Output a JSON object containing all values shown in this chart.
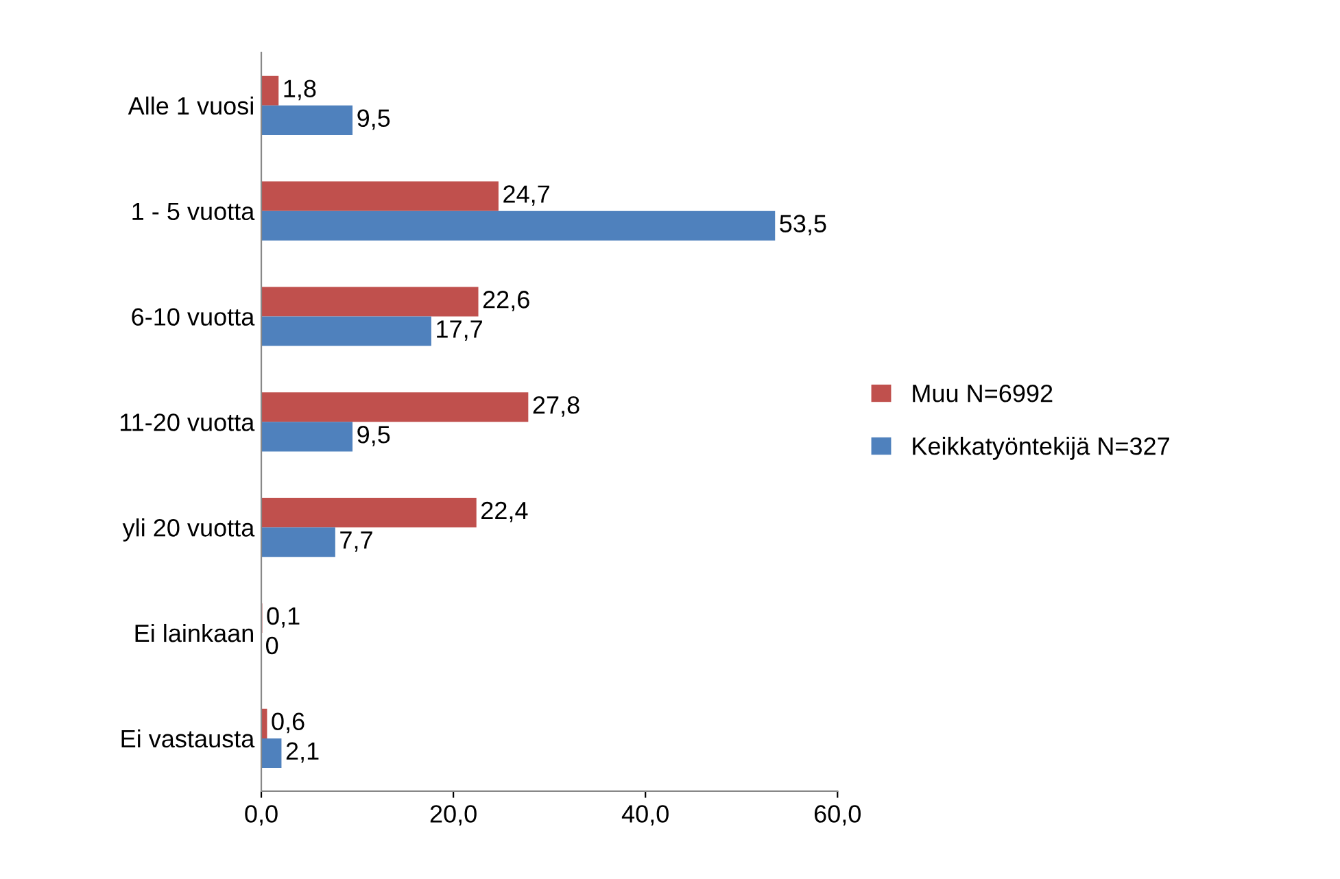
{
  "chart_data": {
    "type": "bar",
    "orientation": "horizontal",
    "categories": [
      "Alle 1 vuosi",
      "1 - 5 vuotta",
      "6-10 vuotta",
      "11-20 vuotta",
      "yli 20 vuotta",
      "Ei lainkaan",
      "Ei vastausta"
    ],
    "series": [
      {
        "name": "Muu N=6992",
        "color": "#c0504d",
        "values": [
          1.8,
          24.7,
          22.6,
          27.8,
          22.4,
          0.1,
          0.6
        ],
        "value_labels": [
          "1,8",
          "24,7",
          "22,6",
          "27,8",
          "22,4",
          "0,1",
          "0,6"
        ]
      },
      {
        "name": "Keikkatyöntekijä N=327",
        "color": "#4f81bd",
        "values": [
          9.5,
          53.5,
          17.7,
          9.5,
          7.7,
          0,
          2.1
        ],
        "value_labels": [
          "9,5",
          "53,5",
          "17,7",
          "9,5",
          "7,7",
          "0",
          "2,1"
        ]
      }
    ],
    "xlim": [
      0,
      60
    ],
    "xticks": [
      {
        "value": 0,
        "label": "0,0"
      },
      {
        "value": 20,
        "label": "20,0"
      },
      {
        "value": 40,
        "label": "40,0"
      },
      {
        "value": 60,
        "label": "60,0"
      }
    ],
    "grid": false,
    "legend": "right"
  }
}
